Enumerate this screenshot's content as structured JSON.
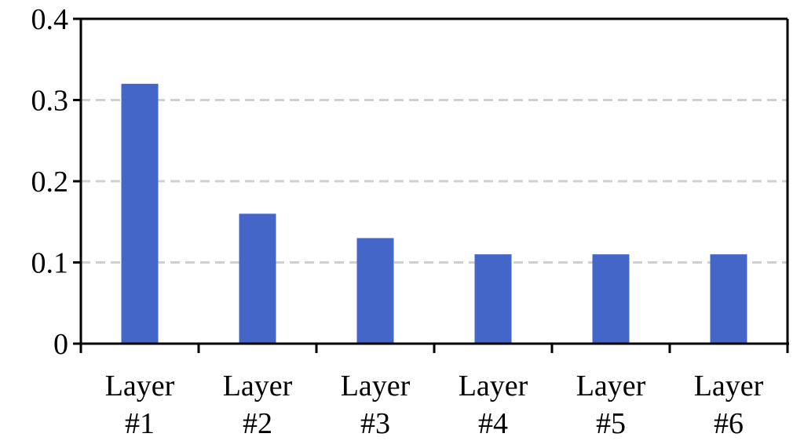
{
  "chart_data": {
    "type": "bar",
    "title": "",
    "xlabel": "",
    "ylabel": "",
    "categories": [
      {
        "line1": "Layer",
        "line2": "#1"
      },
      {
        "line1": "Layer",
        "line2": "#2"
      },
      {
        "line1": "Layer",
        "line2": "#3"
      },
      {
        "line1": "Layer",
        "line2": "#4"
      },
      {
        "line1": "Layer",
        "line2": "#5"
      },
      {
        "line1": "Layer",
        "line2": "#6"
      }
    ],
    "values": [
      0.32,
      0.16,
      0.13,
      0.11,
      0.11,
      0.11
    ],
    "ylim": [
      0,
      0.4
    ],
    "yticks": [
      {
        "value": 0,
        "label": "0"
      },
      {
        "value": 0.1,
        "label": "0.1"
      },
      {
        "value": 0.2,
        "label": "0.2"
      },
      {
        "value": 0.3,
        "label": "0.3"
      },
      {
        "value": 0.4,
        "label": "0.4"
      }
    ],
    "grid": true,
    "legend": "none",
    "bar_color": "#4466c8",
    "grid_color": "#d0d0d0",
    "axis_color": "#000000"
  }
}
